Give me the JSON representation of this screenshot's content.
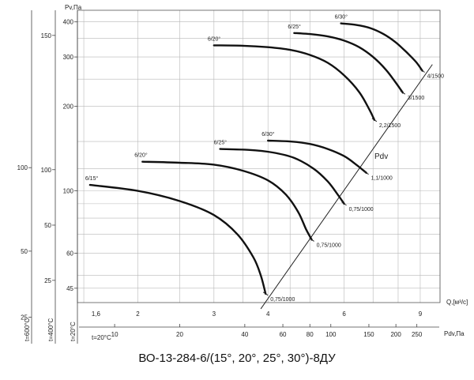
{
  "chart_data": {
    "type": "line",
    "title": "ВО-13-284-6/(15°, 20°, 25°, 30°)-8ДУ",
    "ylabel": "Pv,Па",
    "xlabel": "Q,[м³/с]",
    "x_scale": "log",
    "y_scale": "log",
    "x_ticks": [
      "1,6",
      "2",
      "3",
      "4",
      "6",
      "9"
    ],
    "pdv_label": "Pdv,Па",
    "pdv_ticks": [
      "10",
      "20",
      "40",
      "60",
      "80",
      "100",
      "150",
      "200",
      "250"
    ],
    "pdv_temp_label": "t=20°C",
    "pdv_line_label": "Pdv",
    "temp_scales": [
      {
        "label": "t=600°C",
        "ticks": [
          "100",
          "50",
          "25"
        ]
      },
      {
        "label": "t=400°C",
        "ticks": [
          "150",
          "100",
          "50",
          "25"
        ]
      },
      {
        "label": "t=20°C",
        "ticks": [
          "400",
          "300",
          "200",
          "100",
          "60",
          "45"
        ]
      }
    ],
    "series": [
      {
        "name": "6/15°",
        "end_label": "0,75/1000",
        "points": [
          [
            1.55,
            105
          ],
          [
            2,
            100
          ],
          [
            2.5,
            92
          ],
          [
            3,
            82
          ],
          [
            3.4,
            70
          ],
          [
            3.7,
            58
          ],
          [
            3.85,
            50
          ],
          [
            3.95,
            43
          ]
        ]
      },
      {
        "name": "6/20°",
        "end_label": "0,75/1000",
        "points": [
          [
            2.05,
            127
          ],
          [
            2.5,
            126
          ],
          [
            3,
            124
          ],
          [
            3.5,
            118
          ],
          [
            4,
            109
          ],
          [
            4.4,
            97
          ],
          [
            4.7,
            84
          ],
          [
            4.9,
            73
          ],
          [
            5.05,
            67
          ]
        ]
      },
      {
        "name": "6/25°",
        "end_label": "0,75/1000",
        "points": [
          [
            3.1,
            141
          ],
          [
            3.6,
            140
          ],
          [
            4.1,
            137
          ],
          [
            4.6,
            131
          ],
          [
            5.1,
            120
          ],
          [
            5.5,
            108
          ],
          [
            5.8,
            97
          ],
          [
            6.0,
            90
          ]
        ]
      },
      {
        "name": "6/30°",
        "end_label": "1,1/1000",
        "points": [
          [
            4.0,
            151
          ],
          [
            4.5,
            150
          ],
          [
            5.0,
            147
          ],
          [
            5.5,
            141
          ],
          [
            6.0,
            133
          ],
          [
            6.4,
            124
          ],
          [
            6.75,
            116
          ]
        ]
      },
      {
        "name": "6/20°",
        "end_label": "2,2/1500",
        "points": [
          [
            3.0,
            330
          ],
          [
            3.5,
            329
          ],
          [
            4.0,
            325
          ],
          [
            4.5,
            318
          ],
          [
            5.0,
            305
          ],
          [
            5.5,
            286
          ],
          [
            6.0,
            258
          ],
          [
            6.5,
            225
          ],
          [
            6.85,
            196
          ],
          [
            7.05,
            179
          ]
        ]
      },
      {
        "name": "6/25°",
        "end_label": "3/1500",
        "points": [
          [
            4.6,
            365
          ],
          [
            5.0,
            362
          ],
          [
            5.5,
            355
          ],
          [
            6.0,
            343
          ],
          [
            6.5,
            325
          ],
          [
            7.0,
            300
          ],
          [
            7.5,
            270
          ],
          [
            7.9,
            243
          ],
          [
            8.2,
            224
          ]
        ]
      },
      {
        "name": "6/30°",
        "end_label": "4/1500",
        "points": [
          [
            5.9,
            395
          ],
          [
            6.4,
            390
          ],
          [
            6.9,
            380
          ],
          [
            7.4,
            362
          ],
          [
            7.9,
            338
          ],
          [
            8.4,
            310
          ],
          [
            8.8,
            288
          ],
          [
            9.1,
            268
          ]
        ]
      }
    ]
  }
}
